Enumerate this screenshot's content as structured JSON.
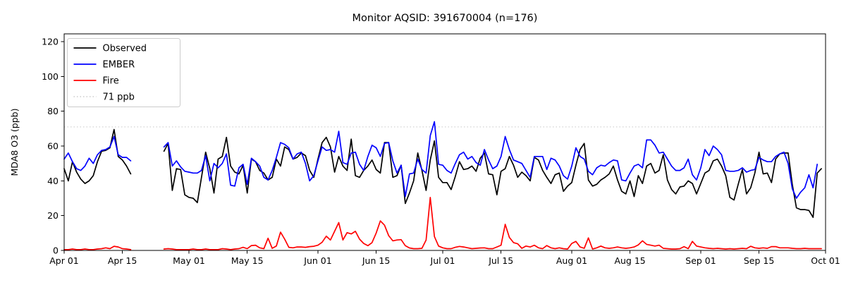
{
  "figure": {
    "title": "Monitor AQSID: 391670004 (n=176)",
    "y_axis_label": "MDA8 O3 (ppb)"
  },
  "legend": {
    "position": "upper left",
    "items": [
      {
        "label": "Observed",
        "color": "#000000",
        "style": "solid"
      },
      {
        "label": "EMBER",
        "color": "#0000ff",
        "style": "solid"
      },
      {
        "label": "Fire",
        "color": "#ff0000",
        "style": "solid"
      },
      {
        "label": "71 ppb",
        "color": "#d3d3d3",
        "style": "dotted"
      }
    ]
  },
  "chart_data": {
    "type": "line",
    "title": "Monitor AQSID: 391670004 (n=176)",
    "xlabel": "",
    "ylabel": "MDA8 O3 (ppb)",
    "x_unit": "days since Apr 01",
    "x_total_days": 183,
    "x_ticks": [
      {
        "day": 0,
        "label": "Apr 01"
      },
      {
        "day": 14,
        "label": "Apr 15"
      },
      {
        "day": 30,
        "label": "May 01"
      },
      {
        "day": 44,
        "label": "May 15"
      },
      {
        "day": 61,
        "label": "Jun 01"
      },
      {
        "day": 75,
        "label": "Jun 15"
      },
      {
        "day": 91,
        "label": "Jul 01"
      },
      {
        "day": 105,
        "label": "Jul 15"
      },
      {
        "day": 122,
        "label": "Aug 01"
      },
      {
        "day": 136,
        "label": "Aug 15"
      },
      {
        "day": 153,
        "label": "Sep 01"
      },
      {
        "day": 167,
        "label": "Sep 15"
      },
      {
        "day": 183,
        "label": "Oct 01"
      }
    ],
    "y_ticks": [
      0,
      20,
      40,
      60,
      80,
      100,
      120
    ],
    "ylim": [
      0,
      124.5
    ],
    "grid": false,
    "legend_position": "upper left",
    "threshold_line": {
      "label": "71 ppb",
      "value": 71,
      "color": "#d3d3d3",
      "style": "dotted"
    },
    "data_gap": {
      "from_day": 17,
      "to_day": 23,
      "note_visible": false
    },
    "series": [
      {
        "name": "Observed",
        "color": "#000000",
        "values": [
          47,
          40,
          51,
          45,
          41,
          38.5,
          40,
          43,
          51,
          57,
          57.5,
          59,
          69.5,
          54,
          52,
          48.5,
          44,
          null,
          null,
          null,
          null,
          null,
          null,
          null,
          57,
          61.5,
          34.5,
          47,
          46.5,
          32,
          30.5,
          30,
          27.5,
          42,
          56.5,
          47,
          33,
          52.5,
          54,
          65,
          48.5,
          45,
          44,
          49,
          33,
          52.5,
          51,
          46,
          44.5,
          40.5,
          42,
          52.5,
          48.5,
          59.5,
          58,
          52.5,
          53.5,
          56,
          54.5,
          46,
          42,
          52.5,
          62,
          65,
          59.5,
          45,
          54,
          48.5,
          46,
          64,
          43,
          42,
          46,
          48.5,
          52,
          46.5,
          44.5,
          62,
          62,
          42,
          43,
          49,
          27,
          33,
          40,
          56,
          46,
          34.5,
          52,
          63,
          42,
          39,
          39,
          35,
          42.5,
          51,
          46.5,
          47,
          48.5,
          45.5,
          53,
          56,
          44,
          43.5,
          32,
          45.5,
          47,
          54,
          49,
          42,
          45,
          43,
          40,
          53.5,
          52,
          46,
          42,
          38.5,
          43.5,
          44.5,
          34,
          37,
          39,
          49,
          58,
          61.5,
          40.5,
          37,
          38,
          40.5,
          42,
          44,
          48.5,
          40.5,
          34,
          32.5,
          40,
          31,
          43,
          38.5,
          48.5,
          50,
          44.5,
          46,
          55,
          40.5,
          35,
          32.5,
          36.5,
          37,
          40,
          38.5,
          32.5,
          38.5,
          44.5,
          46,
          51.5,
          52.5,
          48.5,
          43,
          30.5,
          29,
          38,
          46.5,
          32.5,
          36,
          44.5,
          56.5,
          44,
          44.5,
          39,
          52.5,
          55.5,
          56,
          56,
          38,
          24.5,
          23.5,
          23.5,
          23,
          19,
          44.5,
          47
        ]
      },
      {
        "name": "EMBER",
        "color": "#0000ff",
        "values": [
          52.5,
          56,
          51,
          47,
          46,
          48.5,
          53,
          50,
          55,
          57.5,
          58,
          59.5,
          65.5,
          55,
          53.5,
          53.5,
          51.5,
          null,
          null,
          null,
          null,
          null,
          null,
          null,
          59.5,
          62,
          48.5,
          51.5,
          48,
          45.5,
          45,
          44.5,
          44.5,
          46,
          54.5,
          40,
          50,
          47.5,
          50,
          55.5,
          37.5,
          37,
          47.5,
          49.5,
          38,
          53,
          51,
          48.5,
          42,
          40.5,
          46,
          53.5,
          62,
          61,
          59,
          52.5,
          55.5,
          56.5,
          50,
          40,
          43,
          51.5,
          59.5,
          57.5,
          58,
          56.5,
          68.5,
          50.5,
          49.5,
          56,
          56.5,
          49.5,
          46,
          54,
          60.5,
          59,
          54,
          61.5,
          62,
          51.5,
          44.5,
          49,
          31,
          44,
          44.5,
          52.5,
          46.5,
          44.5,
          66,
          74,
          49.5,
          49,
          46,
          44.5,
          50,
          55,
          56.5,
          52.5,
          54,
          50.5,
          49,
          58,
          52,
          47,
          48.5,
          54,
          65.5,
          58,
          52,
          51,
          50,
          46,
          42,
          54,
          54,
          54,
          46.5,
          53,
          52,
          48.5,
          43,
          41,
          48.5,
          59,
          54,
          52.5,
          45.5,
          43.5,
          47.5,
          49,
          48.5,
          50.5,
          52,
          51.5,
          40.5,
          40,
          44.5,
          48.5,
          49.5,
          47.5,
          63.5,
          63.5,
          60.5,
          56,
          56.5,
          52.5,
          48.5,
          46,
          46,
          47.5,
          52.5,
          43.5,
          40.5,
          47.5,
          58,
          54.5,
          60,
          58,
          55,
          46,
          45.5,
          45.5,
          46,
          47.5,
          45,
          46,
          46.5,
          53.5,
          52,
          51,
          51,
          54,
          55.5,
          56.5,
          50,
          35.5,
          30,
          33.5,
          36,
          43.5,
          36,
          49.5,
          null
        ]
      },
      {
        "name": "Fire",
        "color": "#ff0000",
        "values": [
          0.5,
          0.5,
          0.8,
          0.5,
          0.5,
          0.8,
          0.5,
          0.5,
          0.8,
          1,
          1.5,
          1,
          2.4,
          2,
          1,
          0.8,
          0.5,
          null,
          null,
          null,
          null,
          null,
          null,
          null,
          0.8,
          1,
          0.8,
          0.5,
          0.5,
          0.5,
          0.5,
          0.8,
          0.5,
          0.5,
          0.8,
          0.5,
          0.5,
          0.5,
          1,
          0.8,
          0.5,
          0.8,
          1,
          1.8,
          1,
          2.8,
          3,
          1.5,
          1,
          7,
          1.2,
          2.5,
          10.5,
          6.5,
          1.8,
          1.5,
          2,
          2,
          1.8,
          2.2,
          2.4,
          3,
          4.7,
          8.2,
          6,
          11,
          16,
          6,
          10.2,
          9.5,
          11,
          6.5,
          4,
          2.7,
          4.5,
          10,
          17,
          14.5,
          8.5,
          5.5,
          6,
          6.2,
          2.7,
          1.4,
          1,
          1,
          1.2,
          6,
          30.5,
          8,
          2.5,
          1.5,
          1,
          1,
          1.8,
          2.3,
          2,
          1.5,
          1,
          1.2,
          1.4,
          1.5,
          1,
          1,
          2,
          3,
          15,
          7.5,
          4.5,
          3.8,
          1.2,
          2.5,
          2,
          3,
          1.5,
          1,
          2.8,
          1.5,
          1,
          1.5,
          1,
          0.8,
          4,
          5.2,
          2,
          1.2,
          7.2,
          0.8,
          1.5,
          2.5,
          1.5,
          1.2,
          1.5,
          2,
          1.5,
          1.2,
          1.5,
          2,
          3.2,
          5.5,
          3.5,
          3,
          2.5,
          3,
          1.2,
          1,
          0.8,
          0.8,
          1,
          2.2,
          1,
          5.2,
          2.5,
          2,
          1.5,
          1.2,
          1,
          1.2,
          1,
          0.8,
          1,
          0.8,
          1,
          1.2,
          1,
          2.4,
          1.5,
          1.2,
          1.5,
          1.2,
          2.2,
          2.2,
          1.5,
          1.5,
          1.5,
          1.2,
          1,
          1,
          1.2,
          1,
          1,
          1,
          1
        ]
      }
    ]
  }
}
